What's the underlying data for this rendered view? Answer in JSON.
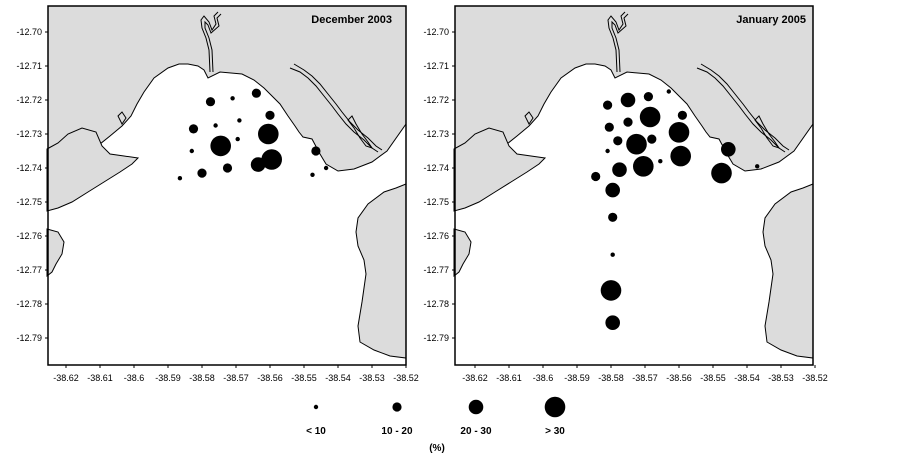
{
  "maps": [
    {
      "title": "December 2003",
      "stations": [
        {
          "lon": -38.5775,
          "lat": -12.7205,
          "cls": 2
        },
        {
          "lon": -38.571,
          "lat": -12.7195,
          "cls": 1
        },
        {
          "lon": -38.564,
          "lat": -12.718,
          "cls": 2
        },
        {
          "lon": -38.56,
          "lat": -12.7245,
          "cls": 2
        },
        {
          "lon": -38.569,
          "lat": -12.726,
          "cls": 1
        },
        {
          "lon": -38.5825,
          "lat": -12.7285,
          "cls": 2
        },
        {
          "lon": -38.576,
          "lat": -12.7275,
          "cls": 1
        },
        {
          "lon": -38.5695,
          "lat": -12.7315,
          "cls": 1
        },
        {
          "lon": -38.5605,
          "lat": -12.73,
          "cls": 4
        },
        {
          "lon": -38.583,
          "lat": -12.735,
          "cls": 1
        },
        {
          "lon": -38.5745,
          "lat": -12.7335,
          "cls": 4
        },
        {
          "lon": -38.5465,
          "lat": -12.735,
          "cls": 2
        },
        {
          "lon": -38.58,
          "lat": -12.7415,
          "cls": 2
        },
        {
          "lon": -38.5725,
          "lat": -12.74,
          "cls": 2
        },
        {
          "lon": -38.5635,
          "lat": -12.739,
          "cls": 3
        },
        {
          "lon": -38.5595,
          "lat": -12.7375,
          "cls": 4
        },
        {
          "lon": -38.5865,
          "lat": -12.743,
          "cls": 1
        },
        {
          "lon": -38.5475,
          "lat": -12.742,
          "cls": 1
        },
        {
          "lon": -38.5435,
          "lat": -12.74,
          "cls": 1
        }
      ]
    },
    {
      "title": "January 2005",
      "stations": [
        {
          "lon": -38.581,
          "lat": -12.7215,
          "cls": 2
        },
        {
          "lon": -38.575,
          "lat": -12.72,
          "cls": 3
        },
        {
          "lon": -38.569,
          "lat": -12.719,
          "cls": 2
        },
        {
          "lon": -38.563,
          "lat": -12.7175,
          "cls": 1
        },
        {
          "lon": -38.5805,
          "lat": -12.728,
          "cls": 2
        },
        {
          "lon": -38.575,
          "lat": -12.7265,
          "cls": 2
        },
        {
          "lon": -38.5685,
          "lat": -12.725,
          "cls": 4
        },
        {
          "lon": -38.559,
          "lat": -12.7245,
          "cls": 2
        },
        {
          "lon": -38.578,
          "lat": -12.732,
          "cls": 2
        },
        {
          "lon": -38.5725,
          "lat": -12.733,
          "cls": 4
        },
        {
          "lon": -38.568,
          "lat": -12.7315,
          "cls": 2
        },
        {
          "lon": -38.56,
          "lat": -12.7295,
          "cls": 4
        },
        {
          "lon": -38.581,
          "lat": -12.735,
          "cls": 1
        },
        {
          "lon": -38.5455,
          "lat": -12.7345,
          "cls": 3
        },
        {
          "lon": -38.5775,
          "lat": -12.7405,
          "cls": 3
        },
        {
          "lon": -38.5705,
          "lat": -12.7395,
          "cls": 4
        },
        {
          "lon": -38.5655,
          "lat": -12.738,
          "cls": 1
        },
        {
          "lon": -38.5595,
          "lat": -12.7365,
          "cls": 4
        },
        {
          "lon": -38.5475,
          "lat": -12.7415,
          "cls": 4
        },
        {
          "lon": -38.5845,
          "lat": -12.7425,
          "cls": 2
        },
        {
          "lon": -38.537,
          "lat": -12.7395,
          "cls": 1
        },
        {
          "lon": -38.5795,
          "lat": -12.7465,
          "cls": 3
        },
        {
          "lon": -38.5795,
          "lat": -12.7545,
          "cls": 2
        },
        {
          "lon": -38.5795,
          "lat": -12.7655,
          "cls": 1
        },
        {
          "lon": -38.58,
          "lat": -12.776,
          "cls": 4
        },
        {
          "lon": -38.5795,
          "lat": -12.7855,
          "cls": 3
        }
      ]
    }
  ],
  "axes": {
    "x_ticks": [
      "-38.62",
      "-38.61",
      "-38.6",
      "-38.59",
      "-38.58",
      "-38.57",
      "-38.56",
      "-38.55",
      "-38.54",
      "-38.53",
      "-38.52"
    ],
    "y_ticks": [
      "-12.70",
      "-12.71",
      "-12.72",
      "-12.73",
      "-12.74",
      "-12.75",
      "-12.76",
      "-12.77",
      "-12.78",
      "-12.79"
    ]
  },
  "legend": {
    "items": [
      {
        "label": "< 10",
        "cls": 1
      },
      {
        "label": "10 - 20",
        "cls": 2
      },
      {
        "label": "20 - 30",
        "cls": 3
      },
      {
        "label": "> 30",
        "cls": 4
      }
    ],
    "unit": "(%)"
  },
  "colors": {
    "land": "#dcdcdc",
    "water": "#ffffff",
    "marker": "#000000"
  }
}
